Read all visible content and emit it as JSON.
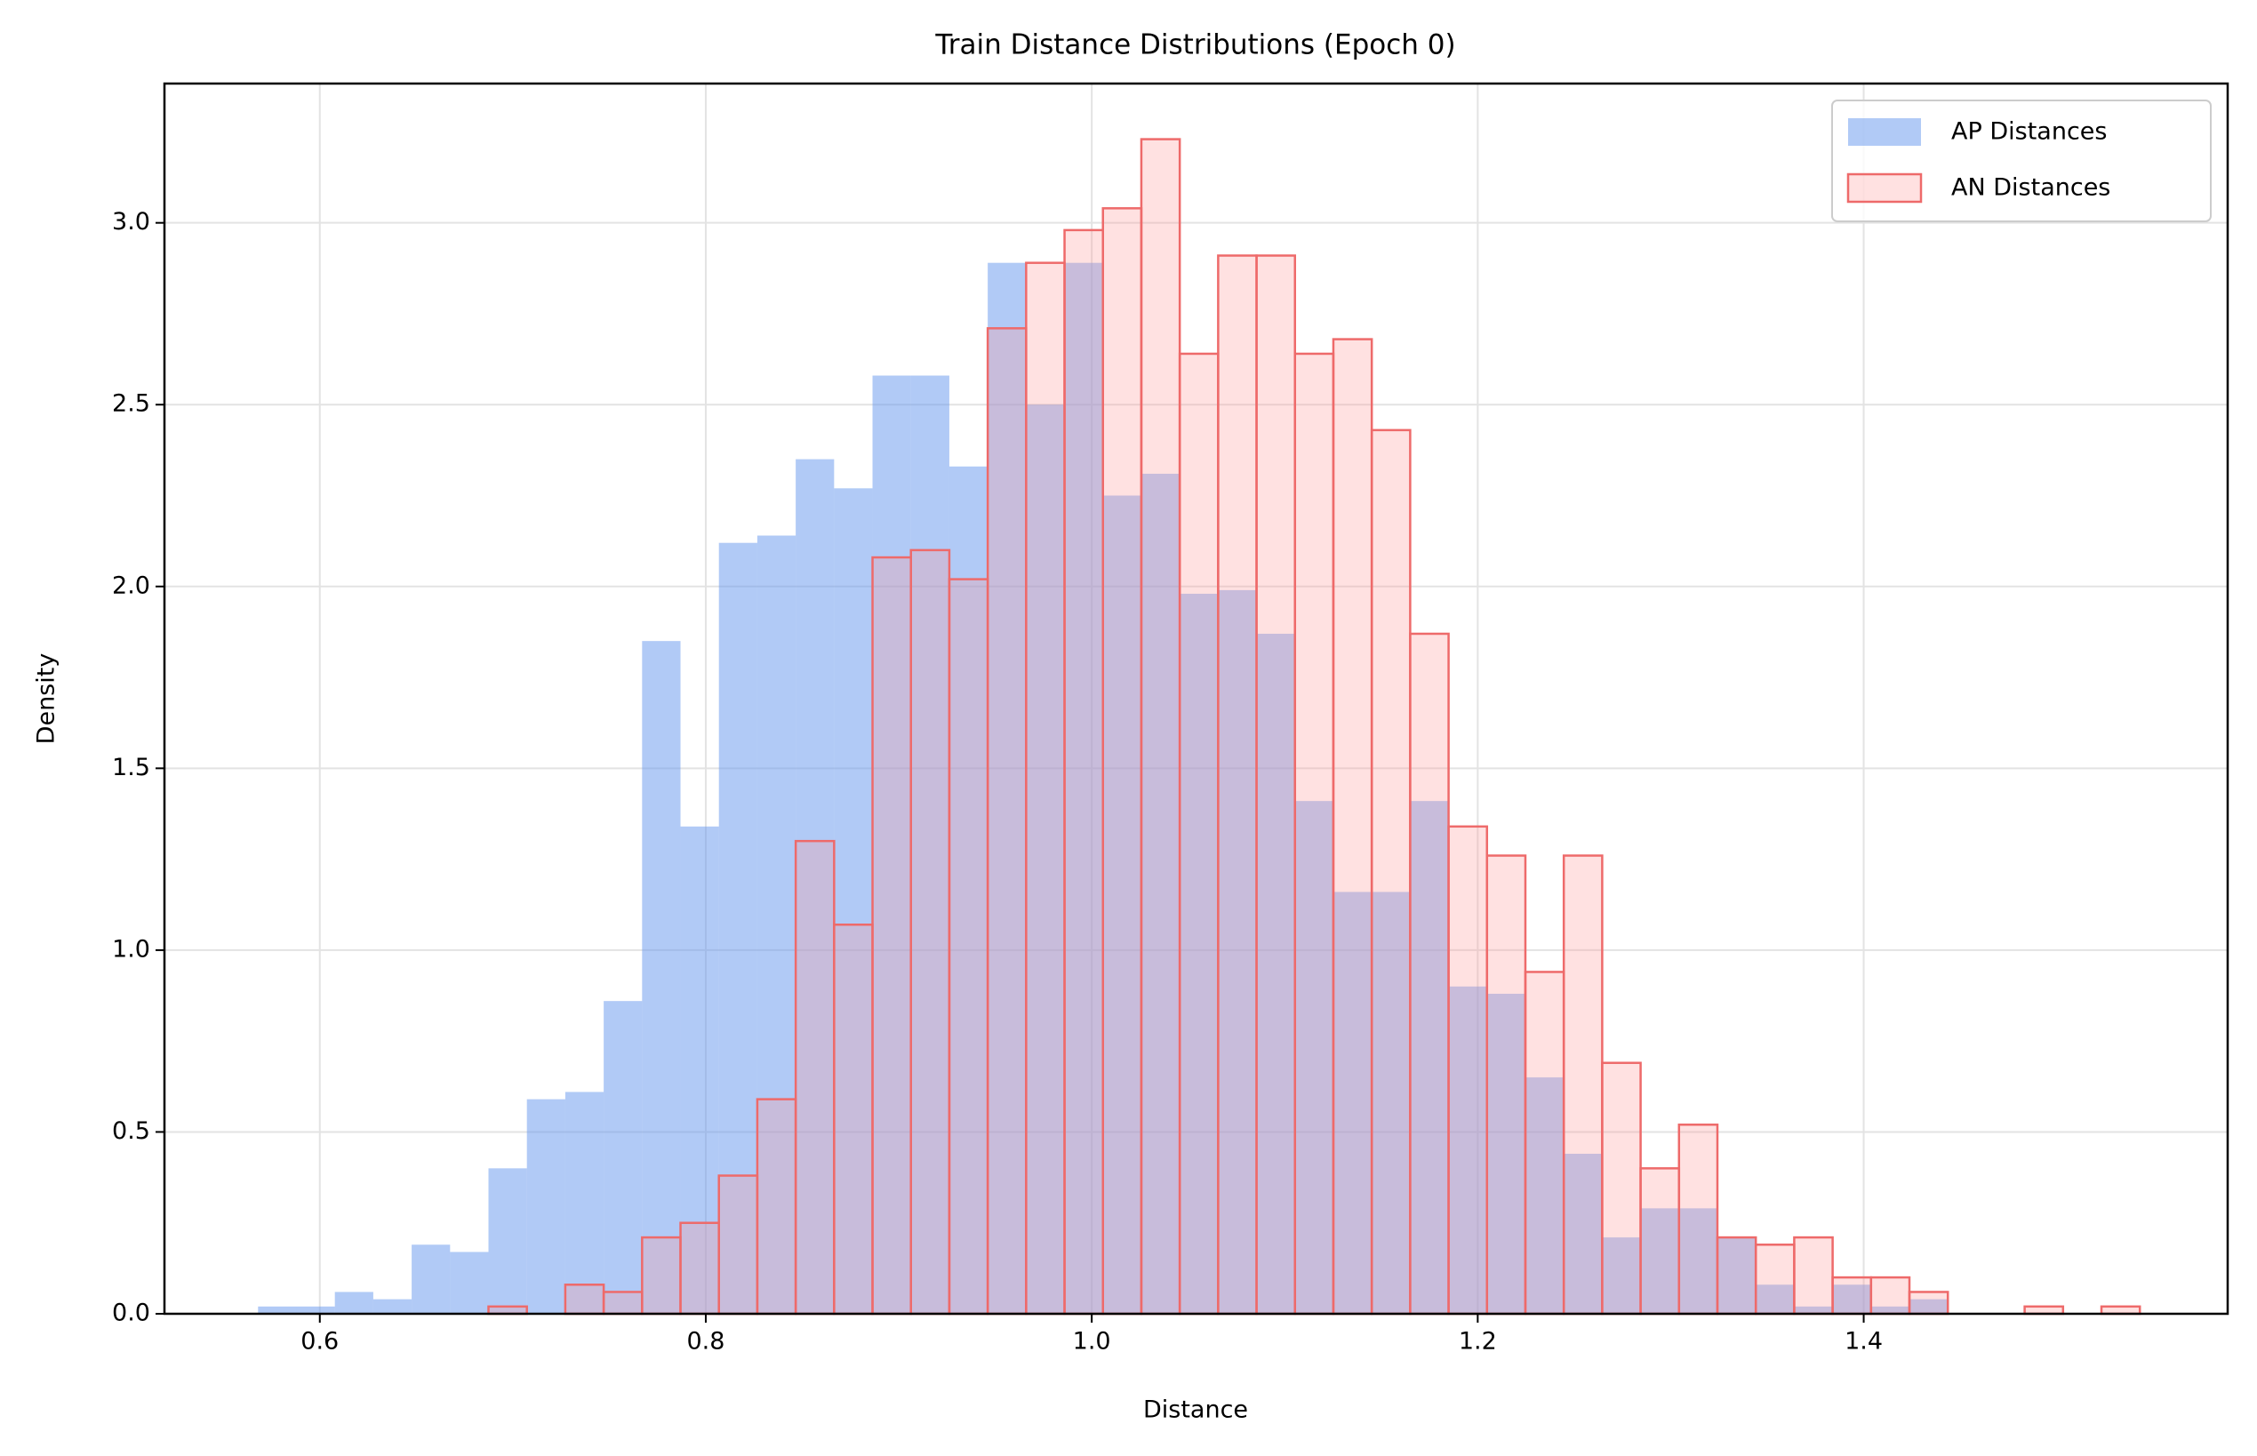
{
  "chart_data": {
    "type": "histogram",
    "title": "Train Distance Distributions (Epoch 0)",
    "x_label": "Distance",
    "y_label": "Density",
    "bins": [
      0.568,
      0.5879,
      0.6078,
      0.6277,
      0.6476,
      0.6675,
      0.6874,
      0.7073,
      0.7272,
      0.7471,
      0.767,
      0.7869,
      0.8068,
      0.8267,
      0.8466,
      0.8665,
      0.8864,
      0.9063,
      0.9262,
      0.9461,
      0.966,
      0.9859,
      1.0058,
      1.0257,
      1.0456,
      1.0655,
      1.0854,
      1.1053,
      1.1252,
      1.1451,
      1.165,
      1.1849,
      1.2048,
      1.2247,
      1.2446,
      1.2645,
      1.2844,
      1.3043,
      1.3242,
      1.3441,
      1.364,
      1.3839,
      1.4038,
      1.4237,
      1.4436,
      1.4635,
      1.4834,
      1.5033,
      1.5232,
      1.5431
    ],
    "series": [
      {
        "name": "AP Distances",
        "color": "#6495ed",
        "opacity": 0.5,
        "values": [
          0.02,
          0.02,
          0.06,
          0.04,
          0.19,
          0.17,
          0.4,
          0.59,
          0.61,
          0.86,
          1.85,
          1.34,
          2.12,
          2.14,
          2.35,
          2.27,
          2.58,
          2.58,
          2.33,
          2.89,
          2.5,
          2.89,
          2.25,
          2.31,
          1.98,
          1.99,
          1.87,
          1.41,
          1.16,
          1.16,
          1.41,
          0.9,
          0.88,
          0.65,
          0.44,
          0.21,
          0.29,
          0.29,
          0.21,
          0.08,
          0.02,
          0.08,
          0.02,
          0.04,
          0,
          0,
          0,
          0,
          0
        ]
      },
      {
        "name": "AN Distances",
        "color": "#ff9a9a",
        "opacity": 0.3,
        "edge_color": "#ee6a6a",
        "values": [
          0,
          0,
          0,
          0,
          0,
          0,
          0.02,
          0,
          0.08,
          0.06,
          0.21,
          0.25,
          0.38,
          0.59,
          1.3,
          1.07,
          2.08,
          2.1,
          2.02,
          2.71,
          2.89,
          2.98,
          3.04,
          3.23,
          2.64,
          2.91,
          2.91,
          2.64,
          2.68,
          2.43,
          1.87,
          1.34,
          1.26,
          0.94,
          1.26,
          0.69,
          0.4,
          0.52,
          0.21,
          0.19,
          0.21,
          0.1,
          0.1,
          0.06,
          0,
          0,
          0.02,
          0,
          0.02
        ]
      }
    ],
    "xlim": [
      0.5195,
      1.5886
    ],
    "ylim": [
      0,
      3.383
    ],
    "xticks": [
      0.6,
      0.8,
      {
        "value": 1.0,
        "label": "1.0"
      },
      1.2,
      1.4
    ],
    "yticks": [
      {
        "value": 0,
        "label": "0.0"
      },
      0.5,
      {
        "value": 1.0,
        "label": "1.0"
      },
      1.5,
      {
        "value": 2.0,
        "label": "2.0"
      },
      2.5,
      {
        "value": 3.0,
        "label": "3.0"
      }
    ],
    "grid": true,
    "legend": "upper right"
  }
}
